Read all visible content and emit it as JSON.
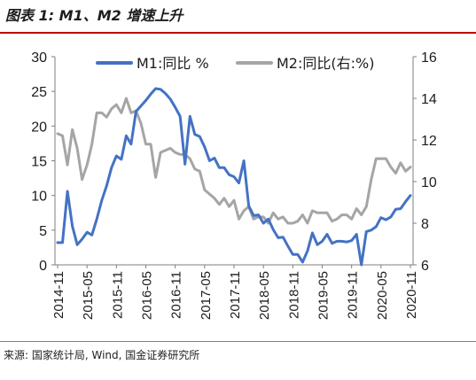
{
  "title": "图表 1:  M1、M2 增速上升",
  "source": "来源:  国家统计局, Wind, 国金证券研究所",
  "colors": {
    "m1": "#4472c4",
    "m2": "#a5a5a5",
    "title_rule": "#c00000"
  },
  "chart_data": {
    "type": "line",
    "title": "图表 1:  M1、M2 增速上升",
    "legend_position": "top",
    "grid": false,
    "x_tick_labels": [
      "2014-11",
      "2015-05",
      "2015-11",
      "2016-05",
      "2016-11",
      "2017-05",
      "2017-11",
      "2018-05",
      "2018-11",
      "2019-05",
      "2019-11",
      "2020-05",
      "2020-11"
    ],
    "x": [
      "2014-11",
      "2014-12",
      "2015-01",
      "2015-02",
      "2015-03",
      "2015-04",
      "2015-05",
      "2015-06",
      "2015-07",
      "2015-08",
      "2015-09",
      "2015-10",
      "2015-11",
      "2015-12",
      "2016-01",
      "2016-02",
      "2016-03",
      "2016-04",
      "2016-05",
      "2016-06",
      "2016-07",
      "2016-08",
      "2016-09",
      "2016-10",
      "2016-11",
      "2016-12",
      "2017-01",
      "2017-02",
      "2017-03",
      "2017-04",
      "2017-05",
      "2017-06",
      "2017-07",
      "2017-08",
      "2017-09",
      "2017-10",
      "2017-11",
      "2017-12",
      "2018-01",
      "2018-02",
      "2018-03",
      "2018-04",
      "2018-05",
      "2018-06",
      "2018-07",
      "2018-08",
      "2018-09",
      "2018-10",
      "2018-11",
      "2018-12",
      "2019-01",
      "2019-02",
      "2019-03",
      "2019-04",
      "2019-05",
      "2019-06",
      "2019-07",
      "2019-08",
      "2019-09",
      "2019-10",
      "2019-11",
      "2019-12",
      "2020-01",
      "2020-02",
      "2020-03",
      "2020-04",
      "2020-05",
      "2020-06",
      "2020-07",
      "2020-08",
      "2020-09",
      "2020-10",
      "2020-11"
    ],
    "y_left": {
      "min": 0,
      "max": 30,
      "ticks": [
        0,
        5,
        10,
        15,
        20,
        25,
        30
      ]
    },
    "y_right": {
      "min": 6,
      "max": 16,
      "ticks": [
        6,
        8,
        10,
        12,
        14,
        16
      ]
    },
    "series": [
      {
        "name": "M1:同比 %",
        "axis": "left",
        "values": [
          3.2,
          3.2,
          10.6,
          5.6,
          2.9,
          3.7,
          4.7,
          4.3,
          6.6,
          9.3,
          11.4,
          14.0,
          15.7,
          15.2,
          18.6,
          17.4,
          22.1,
          22.9,
          23.7,
          24.6,
          25.4,
          25.3,
          24.7,
          23.9,
          22.7,
          21.4,
          14.5,
          21.4,
          18.8,
          18.5,
          17.0,
          15.0,
          15.4,
          14.0,
          14.0,
          13.0,
          12.7,
          11.8,
          15.0,
          8.5,
          7.1,
          7.2,
          6.0,
          6.6,
          5.1,
          3.9,
          4.0,
          2.7,
          1.5,
          1.5,
          0.4,
          2.0,
          4.6,
          2.9,
          3.4,
          4.4,
          3.1,
          3.4,
          3.4,
          3.3,
          3.5,
          4.4,
          0.0,
          4.8,
          5.0,
          5.5,
          6.8,
          6.5,
          6.9,
          8.0,
          8.1,
          9.1,
          10.0
        ]
      },
      {
        "name": "M2:同比(右:%)",
        "axis": "right",
        "values": [
          12.3,
          12.2,
          10.8,
          12.5,
          11.6,
          10.1,
          10.8,
          11.8,
          13.3,
          13.3,
          13.1,
          13.5,
          13.7,
          13.3,
          14.0,
          13.3,
          13.4,
          12.8,
          11.8,
          11.8,
          10.2,
          11.4,
          11.5,
          11.6,
          11.4,
          11.3,
          11.3,
          11.1,
          10.6,
          10.5,
          9.6,
          9.4,
          9.2,
          8.9,
          9.2,
          8.8,
          9.1,
          8.2,
          8.6,
          8.8,
          8.2,
          8.3,
          8.3,
          8.0,
          8.5,
          8.2,
          8.3,
          8.0,
          8.0,
          8.1,
          8.4,
          8.0,
          8.6,
          8.5,
          8.5,
          8.5,
          8.1,
          8.2,
          8.4,
          8.4,
          8.2,
          8.7,
          8.4,
          8.8,
          10.1,
          11.1,
          11.1,
          11.1,
          10.7,
          10.4,
          10.9,
          10.5,
          10.7
        ]
      }
    ]
  }
}
